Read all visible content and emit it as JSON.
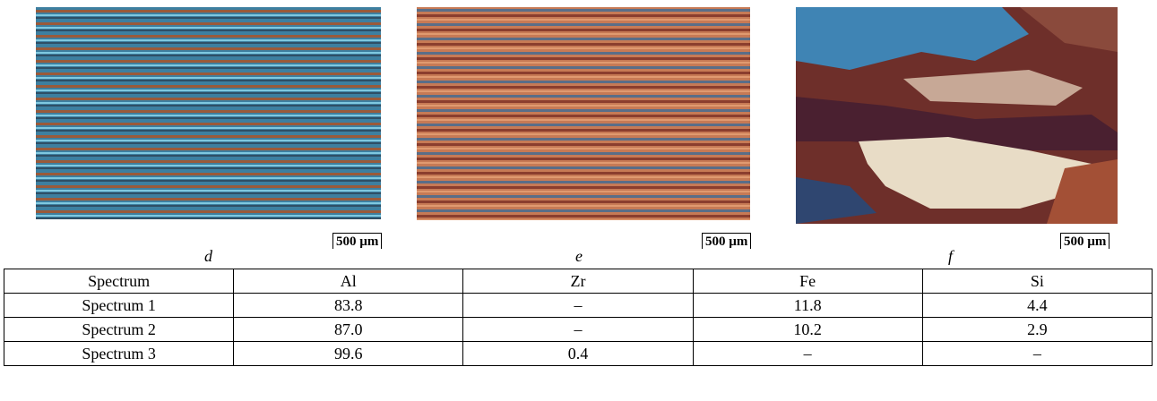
{
  "figure": {
    "panels": [
      {
        "label": "d",
        "scale_bar": "500 µm"
      },
      {
        "label": "e",
        "scale_bar": "500 µm"
      },
      {
        "label": "f",
        "scale_bar": "500 µm"
      }
    ]
  },
  "table": {
    "header": [
      "Spectrum",
      "Al",
      "Zr",
      "Fe",
      "Si"
    ],
    "rows": [
      [
        "Spectrum 1",
        "83.8",
        "–",
        "11.8",
        "4.4"
      ],
      [
        "Spectrum 2",
        "87.0",
        "–",
        "10.2",
        "2.9"
      ],
      [
        "Spectrum 3",
        "99.6",
        "0.4",
        "–",
        "–"
      ]
    ]
  }
}
